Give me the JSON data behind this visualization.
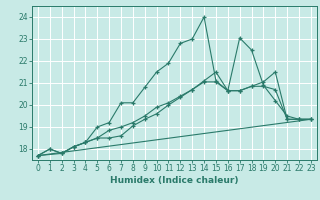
{
  "xlabel": "Humidex (Indice chaleur)",
  "bg_color": "#c8eae6",
  "grid_color": "#ffffff",
  "line_color": "#2a7a6a",
  "xlim": [
    -0.5,
    23.5
  ],
  "ylim": [
    17.5,
    24.5
  ],
  "yticks": [
    18,
    19,
    20,
    21,
    22,
    23,
    24
  ],
  "xticks": [
    0,
    1,
    2,
    3,
    4,
    5,
    6,
    7,
    8,
    9,
    10,
    11,
    12,
    13,
    14,
    15,
    16,
    17,
    18,
    19,
    20,
    21,
    22,
    23
  ],
  "lines": [
    {
      "x": [
        0,
        1,
        2,
        3,
        4,
        5,
        6,
        7,
        8,
        9,
        10,
        11,
        12,
        13,
        14,
        15,
        16,
        17,
        18,
        19,
        20,
        21,
        22,
        23
      ],
      "y": [
        17.7,
        18.0,
        17.8,
        18.1,
        18.3,
        19.0,
        19.2,
        20.1,
        20.1,
        20.8,
        21.5,
        21.9,
        22.8,
        23.0,
        24.0,
        21.1,
        20.65,
        23.05,
        22.5,
        20.9,
        20.2,
        19.5,
        19.35,
        19.35
      ]
    },
    {
      "x": [
        0,
        1,
        2,
        3,
        4,
        5,
        6,
        7,
        8,
        9,
        10,
        11,
        12,
        13,
        14,
        15,
        16,
        17,
        18,
        19,
        20,
        21,
        22,
        23
      ],
      "y": [
        17.7,
        18.0,
        17.8,
        18.1,
        18.3,
        18.5,
        18.5,
        18.6,
        19.05,
        19.35,
        19.6,
        20.0,
        20.35,
        20.7,
        21.05,
        21.05,
        20.65,
        20.65,
        20.85,
        20.85,
        20.7,
        19.35,
        19.35,
        19.35
      ]
    },
    {
      "x": [
        0,
        2,
        3,
        4,
        5,
        6,
        7,
        8,
        9,
        10,
        11,
        12,
        13,
        14,
        15,
        16,
        17,
        18,
        19,
        20,
        21,
        22,
        23
      ],
      "y": [
        17.7,
        17.8,
        18.1,
        18.3,
        18.5,
        18.85,
        19.0,
        19.2,
        19.5,
        19.9,
        20.1,
        20.4,
        20.7,
        21.1,
        21.5,
        20.65,
        20.65,
        20.85,
        21.05,
        21.5,
        19.35,
        19.35,
        19.35
      ]
    },
    {
      "x": [
        0,
        23
      ],
      "y": [
        17.7,
        19.35
      ]
    }
  ]
}
